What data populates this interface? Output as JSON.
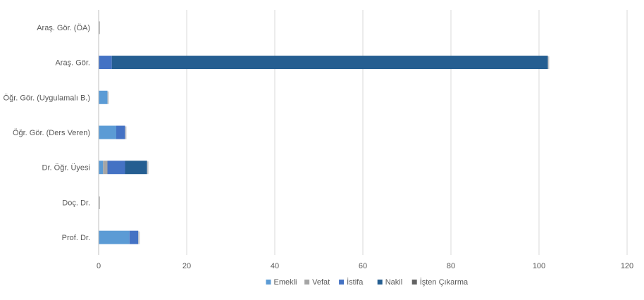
{
  "colors": {
    "Emekli": "#5b9bd5",
    "Vefat": "#a5a5a5",
    "İstifa": "#4472c4",
    "Nakil": "#255e91",
    "İşten Çıkarma": "#636363",
    "grid": "#d9d9d9",
    "axis_text": "#595959"
  },
  "chart_data": {
    "type": "bar",
    "orientation": "horizontal",
    "stacked": true,
    "categories": [
      "Araş. Gör. (ÖA)",
      "Araş. Gör.",
      "Öğr. Gör. (Uygulamalı B.)",
      "Öğr. Gör. (Ders Veren)",
      "Dr. Öğr. Üyesi",
      "Doç. Dr.",
      "Prof. Dr."
    ],
    "series": [
      {
        "name": "Emekli",
        "values": [
          0,
          0,
          2,
          4,
          1,
          0,
          7
        ]
      },
      {
        "name": "Vefat",
        "values": [
          0,
          0,
          0,
          0,
          1,
          0,
          0
        ]
      },
      {
        "name": "İstifa",
        "values": [
          0,
          3,
          0,
          2,
          4,
          0,
          2
        ]
      },
      {
        "name": "Nakil",
        "values": [
          0,
          99,
          0,
          0,
          5,
          0,
          0
        ]
      },
      {
        "name": "İşten Çıkarma",
        "values": [
          0,
          0,
          0,
          0,
          0,
          0,
          0
        ]
      }
    ],
    "xlim": [
      0,
      120
    ],
    "xticks": [
      0,
      20,
      40,
      60,
      80,
      100,
      120
    ],
    "grid": true,
    "legend_position": "bottom",
    "title": "",
    "xlabel": "",
    "ylabel": ""
  }
}
